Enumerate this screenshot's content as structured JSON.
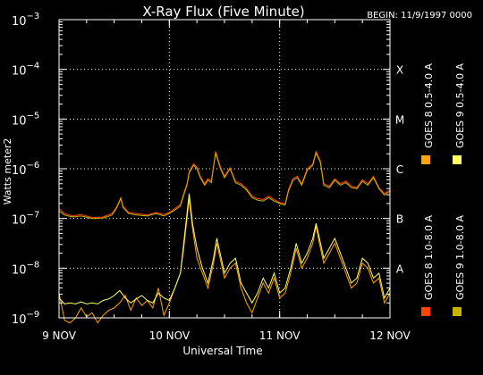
{
  "chart_data": {
    "type": "line",
    "title": "X-Ray Flux (Five Minute)",
    "begin_label": "BEGIN: 11/9/1997 0000",
    "xlabel": "Universal Time",
    "ylabel": "Watts meter2",
    "x_unit": "days since 9 NOV 1997 0000 UT",
    "xlim": [
      0,
      3
    ],
    "ylim_log10": [
      -9,
      -3
    ],
    "y_scale": "log",
    "grid": "vertical dotted at day boundaries",
    "x_ticks": [
      {
        "x": 0,
        "label": "9 NOV"
      },
      {
        "x": 1,
        "label": "10 NOV"
      },
      {
        "x": 2,
        "label": "11 NOV"
      },
      {
        "x": 3,
        "label": "12 NOV"
      }
    ],
    "y_ticks": [
      {
        "exp": -3,
        "base": "10",
        "sup": "−3"
      },
      {
        "exp": -4,
        "base": "10",
        "sup": "−4"
      },
      {
        "exp": -5,
        "base": "10",
        "sup": "−5"
      },
      {
        "exp": -6,
        "base": "10",
        "sup": "−6"
      },
      {
        "exp": -7,
        "base": "10",
        "sup": "−7"
      },
      {
        "exp": -8,
        "base": "10",
        "sup": "−8"
      },
      {
        "exp": -9,
        "base": "10",
        "sup": "−9"
      }
    ],
    "flare_classes": [
      {
        "label": "X",
        "exp": -4
      },
      {
        "label": "M",
        "exp": -5
      },
      {
        "label": "C",
        "exp": -6
      },
      {
        "label": "B",
        "exp": -7
      },
      {
        "label": "A",
        "exp": -8
      }
    ],
    "legend_placement": "right, vertical",
    "series": [
      {
        "name": "GOES 8 1.0-8.0 A",
        "color": "#ff4400",
        "points": [
          [
            0,
            -6.8
          ],
          [
            0.05,
            -6.9
          ],
          [
            0.12,
            -6.95
          ],
          [
            0.2,
            -6.92
          ],
          [
            0.3,
            -6.98
          ],
          [
            0.4,
            -6.97
          ],
          [
            0.48,
            -6.9
          ],
          [
            0.52,
            -6.78
          ],
          [
            0.56,
            -6.58
          ],
          [
            0.58,
            -6.75
          ],
          [
            0.63,
            -6.88
          ],
          [
            0.7,
            -6.9
          ],
          [
            0.8,
            -6.93
          ],
          [
            0.88,
            -6.88
          ],
          [
            0.95,
            -6.92
          ],
          [
            1.0,
            -6.88
          ],
          [
            1.05,
            -6.8
          ],
          [
            1.1,
            -6.72
          ],
          [
            1.13,
            -6.5
          ],
          [
            1.16,
            -6.3
          ],
          [
            1.18,
            -6.05
          ],
          [
            1.22,
            -5.9
          ],
          [
            1.25,
            -5.97
          ],
          [
            1.28,
            -6.15
          ],
          [
            1.32,
            -6.3
          ],
          [
            1.35,
            -6.2
          ],
          [
            1.38,
            -6.25
          ],
          [
            1.42,
            -5.65
          ],
          [
            1.46,
            -5.95
          ],
          [
            1.5,
            -6.15
          ],
          [
            1.55,
            -5.98
          ],
          [
            1.6,
            -6.25
          ],
          [
            1.65,
            -6.3
          ],
          [
            1.7,
            -6.4
          ],
          [
            1.75,
            -6.55
          ],
          [
            1.8,
            -6.6
          ],
          [
            1.85,
            -6.62
          ],
          [
            1.9,
            -6.55
          ],
          [
            1.95,
            -6.62
          ],
          [
            2.0,
            -6.68
          ],
          [
            2.05,
            -6.7
          ],
          [
            2.08,
            -6.42
          ],
          [
            2.12,
            -6.2
          ],
          [
            2.16,
            -6.15
          ],
          [
            2.2,
            -6.3
          ],
          [
            2.25,
            -6.0
          ],
          [
            2.3,
            -5.9
          ],
          [
            2.33,
            -5.65
          ],
          [
            2.37,
            -5.85
          ],
          [
            2.4,
            -6.3
          ],
          [
            2.45,
            -6.35
          ],
          [
            2.5,
            -6.2
          ],
          [
            2.55,
            -6.3
          ],
          [
            2.6,
            -6.25
          ],
          [
            2.65,
            -6.35
          ],
          [
            2.7,
            -6.38
          ],
          [
            2.75,
            -6.22
          ],
          [
            2.8,
            -6.3
          ],
          [
            2.85,
            -6.15
          ],
          [
            2.9,
            -6.38
          ],
          [
            2.95,
            -6.5
          ],
          [
            3.0,
            -6.42
          ]
        ]
      },
      {
        "name": "GOES 8 0.5-4.0 A",
        "color": "#ffa300",
        "points": [
          [
            0,
            -8.5
          ],
          [
            0.05,
            -9.05
          ],
          [
            0.1,
            -9.1
          ],
          [
            0.15,
            -9.0
          ],
          [
            0.2,
            -8.8
          ],
          [
            0.25,
            -8.98
          ],
          [
            0.3,
            -8.9
          ],
          [
            0.35,
            -9.1
          ],
          [
            0.4,
            -8.95
          ],
          [
            0.45,
            -8.85
          ],
          [
            0.5,
            -8.8
          ],
          [
            0.55,
            -8.7
          ],
          [
            0.6,
            -8.55
          ],
          [
            0.65,
            -8.85
          ],
          [
            0.7,
            -8.6
          ],
          [
            0.75,
            -8.75
          ],
          [
            0.8,
            -8.65
          ],
          [
            0.85,
            -8.8
          ],
          [
            0.9,
            -8.4
          ],
          [
            0.95,
            -8.95
          ],
          [
            1.0,
            -8.7
          ],
          [
            1.05,
            -8.4
          ],
          [
            1.1,
            -8.1
          ],
          [
            1.13,
            -7.6
          ],
          [
            1.16,
            -7.0
          ],
          [
            1.18,
            -6.6
          ],
          [
            1.21,
            -7.2
          ],
          [
            1.25,
            -7.8
          ],
          [
            1.3,
            -8.1
          ],
          [
            1.35,
            -8.4
          ],
          [
            1.4,
            -7.9
          ],
          [
            1.43,
            -7.5
          ],
          [
            1.46,
            -7.8
          ],
          [
            1.5,
            -8.2
          ],
          [
            1.55,
            -8.0
          ],
          [
            1.6,
            -7.9
          ],
          [
            1.65,
            -8.4
          ],
          [
            1.7,
            -8.7
          ],
          [
            1.75,
            -8.9
          ],
          [
            1.8,
            -8.6
          ],
          [
            1.85,
            -8.3
          ],
          [
            1.9,
            -8.5
          ],
          [
            1.95,
            -8.2
          ],
          [
            2.0,
            -8.6
          ],
          [
            2.05,
            -8.5
          ],
          [
            2.1,
            -8.1
          ],
          [
            2.15,
            -7.6
          ],
          [
            2.2,
            -8.0
          ],
          [
            2.25,
            -7.8
          ],
          [
            2.3,
            -7.5
          ],
          [
            2.33,
            -7.15
          ],
          [
            2.36,
            -7.5
          ],
          [
            2.4,
            -7.9
          ],
          [
            2.45,
            -7.7
          ],
          [
            2.5,
            -7.5
          ],
          [
            2.55,
            -7.8
          ],
          [
            2.6,
            -8.1
          ],
          [
            2.65,
            -8.4
          ],
          [
            2.7,
            -8.3
          ],
          [
            2.75,
            -7.9
          ],
          [
            2.8,
            -8.0
          ],
          [
            2.85,
            -8.3
          ],
          [
            2.9,
            -8.2
          ],
          [
            2.95,
            -8.7
          ],
          [
            3.0,
            -8.5
          ]
        ]
      },
      {
        "name": "GOES 9 1.0-8.0 A",
        "color": "#c8b400",
        "points": [
          [
            0,
            -6.85
          ],
          [
            0.05,
            -6.93
          ],
          [
            0.12,
            -6.97
          ],
          [
            0.2,
            -6.95
          ],
          [
            0.3,
            -7.0
          ],
          [
            0.4,
            -6.99
          ],
          [
            0.48,
            -6.93
          ],
          [
            0.52,
            -6.8
          ],
          [
            0.56,
            -6.6
          ],
          [
            0.58,
            -6.78
          ],
          [
            0.63,
            -6.9
          ],
          [
            0.7,
            -6.93
          ],
          [
            0.8,
            -6.95
          ],
          [
            0.88,
            -6.9
          ],
          [
            0.95,
            -6.95
          ],
          [
            1.0,
            -6.9
          ],
          [
            1.05,
            -6.83
          ],
          [
            1.1,
            -6.75
          ],
          [
            1.13,
            -6.53
          ],
          [
            1.16,
            -6.33
          ],
          [
            1.18,
            -6.08
          ],
          [
            1.22,
            -5.93
          ],
          [
            1.25,
            -6.0
          ],
          [
            1.28,
            -6.18
          ],
          [
            1.32,
            -6.33
          ],
          [
            1.35,
            -6.23
          ],
          [
            1.38,
            -6.28
          ],
          [
            1.42,
            -5.68
          ],
          [
            1.46,
            -5.98
          ],
          [
            1.5,
            -6.18
          ],
          [
            1.55,
            -6.0
          ],
          [
            1.6,
            -6.28
          ],
          [
            1.65,
            -6.33
          ],
          [
            1.7,
            -6.43
          ],
          [
            1.75,
            -6.58
          ],
          [
            1.8,
            -6.63
          ],
          [
            1.85,
            -6.65
          ],
          [
            1.9,
            -6.58
          ],
          [
            1.95,
            -6.65
          ],
          [
            2.0,
            -6.7
          ],
          [
            2.05,
            -6.73
          ],
          [
            2.08,
            -6.45
          ],
          [
            2.12,
            -6.23
          ],
          [
            2.16,
            -6.18
          ],
          [
            2.2,
            -6.33
          ],
          [
            2.25,
            -6.03
          ],
          [
            2.3,
            -5.93
          ],
          [
            2.33,
            -5.68
          ],
          [
            2.37,
            -5.88
          ],
          [
            2.4,
            -6.33
          ],
          [
            2.45,
            -6.38
          ],
          [
            2.5,
            -6.23
          ],
          [
            2.55,
            -6.33
          ],
          [
            2.6,
            -6.28
          ],
          [
            2.65,
            -6.38
          ],
          [
            2.7,
            -6.4
          ],
          [
            2.75,
            -6.25
          ],
          [
            2.8,
            -6.33
          ],
          [
            2.85,
            -6.18
          ],
          [
            2.9,
            -6.4
          ],
          [
            2.95,
            -6.53
          ],
          [
            3.0,
            -6.45
          ]
        ]
      },
      {
        "name": "GOES 9 0.5-4.0 A",
        "color": "#ffff66",
        "points": [
          [
            0,
            -8.6
          ],
          [
            0.05,
            -8.72
          ],
          [
            0.1,
            -8.7
          ],
          [
            0.15,
            -8.72
          ],
          [
            0.2,
            -8.68
          ],
          [
            0.25,
            -8.72
          ],
          [
            0.3,
            -8.7
          ],
          [
            0.35,
            -8.72
          ],
          [
            0.4,
            -8.65
          ],
          [
            0.45,
            -8.62
          ],
          [
            0.5,
            -8.55
          ],
          [
            0.55,
            -8.45
          ],
          [
            0.6,
            -8.6
          ],
          [
            0.65,
            -8.7
          ],
          [
            0.7,
            -8.62
          ],
          [
            0.75,
            -8.55
          ],
          [
            0.8,
            -8.65
          ],
          [
            0.85,
            -8.7
          ],
          [
            0.9,
            -8.5
          ],
          [
            0.95,
            -8.6
          ],
          [
            1.0,
            -8.65
          ],
          [
            1.05,
            -8.4
          ],
          [
            1.1,
            -8.1
          ],
          [
            1.13,
            -7.5
          ],
          [
            1.16,
            -6.9
          ],
          [
            1.18,
            -6.5
          ],
          [
            1.21,
            -7.1
          ],
          [
            1.25,
            -7.6
          ],
          [
            1.3,
            -8.0
          ],
          [
            1.35,
            -8.3
          ],
          [
            1.4,
            -7.8
          ],
          [
            1.43,
            -7.4
          ],
          [
            1.46,
            -7.7
          ],
          [
            1.5,
            -8.1
          ],
          [
            1.55,
            -7.9
          ],
          [
            1.6,
            -7.8
          ],
          [
            1.65,
            -8.3
          ],
          [
            1.7,
            -8.5
          ],
          [
            1.75,
            -8.7
          ],
          [
            1.8,
            -8.5
          ],
          [
            1.85,
            -8.2
          ],
          [
            1.9,
            -8.4
          ],
          [
            1.95,
            -8.1
          ],
          [
            2.0,
            -8.5
          ],
          [
            2.05,
            -8.4
          ],
          [
            2.1,
            -8.0
          ],
          [
            2.15,
            -7.5
          ],
          [
            2.2,
            -7.9
          ],
          [
            2.25,
            -7.7
          ],
          [
            2.3,
            -7.4
          ],
          [
            2.33,
            -7.1
          ],
          [
            2.36,
            -7.4
          ],
          [
            2.4,
            -7.8
          ],
          [
            2.45,
            -7.6
          ],
          [
            2.5,
            -7.4
          ],
          [
            2.55,
            -7.7
          ],
          [
            2.6,
            -8.0
          ],
          [
            2.65,
            -8.3
          ],
          [
            2.7,
            -8.2
          ],
          [
            2.75,
            -7.8
          ],
          [
            2.8,
            -7.9
          ],
          [
            2.85,
            -8.2
          ],
          [
            2.9,
            -8.1
          ],
          [
            2.95,
            -8.6
          ],
          [
            3.0,
            -8.4
          ]
        ]
      }
    ]
  }
}
